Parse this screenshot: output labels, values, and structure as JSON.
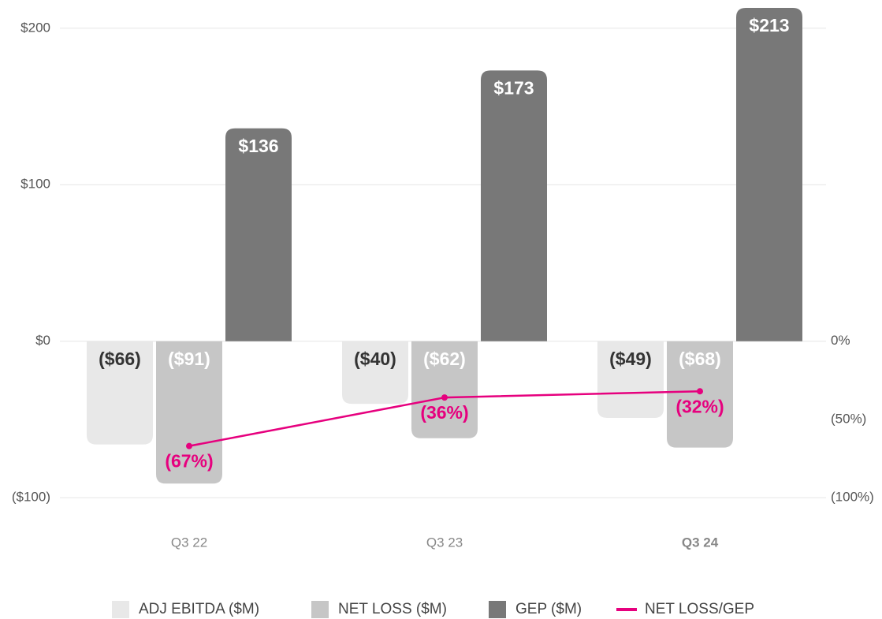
{
  "chart_data": {
    "type": "bar",
    "categories": [
      "Q3 22",
      "Q3 23",
      "Q3 24"
    ],
    "series": [
      {
        "name": "ADJ EBITDA ($M)",
        "color": "#e8e8e8",
        "values": [
          -66,
          -40,
          -49
        ],
        "value_labels": [
          "($66)",
          "($40)",
          "($49)"
        ]
      },
      {
        "name": "NET LOSS ($M)",
        "color": "#c6c6c6",
        "values": [
          -91,
          -62,
          -68
        ],
        "value_labels": [
          "($91)",
          "($62)",
          "($68)"
        ]
      },
      {
        "name": "GEP ($M)",
        "color": "#787878",
        "values": [
          136,
          173,
          213
        ],
        "value_labels": [
          "$136",
          "$173",
          "$213"
        ]
      },
      {
        "name": "NET LOSS/GEP",
        "type": "line",
        "axis": "y2",
        "color": "#e6007e",
        "values": [
          -67,
          -36,
          -32
        ],
        "value_labels": [
          "(67%)",
          "(36%)",
          "(32%)"
        ]
      }
    ],
    "ylim": [
      -110,
      215
    ],
    "yticks": [
      {
        "value": -100,
        "label": "($100)"
      },
      {
        "value": 0,
        "label": "$0"
      },
      {
        "value": 100,
        "label": "$100"
      },
      {
        "value": 200,
        "label": "$200"
      }
    ],
    "y2lim": [
      -110,
      215
    ],
    "y2ticks": [
      {
        "value": -100,
        "label": "(100%)"
      },
      {
        "value": -50,
        "label": "(50%)"
      },
      {
        "value": 0,
        "label": "0%"
      }
    ],
    "grid": true
  }
}
